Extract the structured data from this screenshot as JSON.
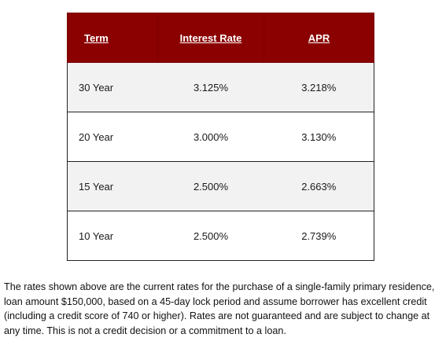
{
  "table": {
    "headers": {
      "term": "Term",
      "interest_rate": "Interest Rate",
      "apr": "APR"
    },
    "rows": [
      {
        "term": "30 Year",
        "interest_rate": "3.125%",
        "apr": "3.218%"
      },
      {
        "term": "20 Year",
        "interest_rate": "3.000%",
        "apr": "3.130%"
      },
      {
        "term": "15 Year",
        "interest_rate": "2.500%",
        "apr": "2.663%"
      },
      {
        "term": "10 Year",
        "interest_rate": "2.500%",
        "apr": "2.739%"
      }
    ]
  },
  "disclaimer": "The rates shown above are the current rates for the purchase of a single-family primary residence, loan amount $150,000, based on a 45-day lock period and assume borrower has excellent credit (including a credit score of 740 or higher). Rates are not guaranteed and are subject to change at any time. This is not a credit decision or a commitment to a loan.",
  "colors": {
    "header_background": "#8b0000",
    "header_text": "#ffffff",
    "row_alt_background": "#f2f2f2",
    "border": "#222222"
  }
}
